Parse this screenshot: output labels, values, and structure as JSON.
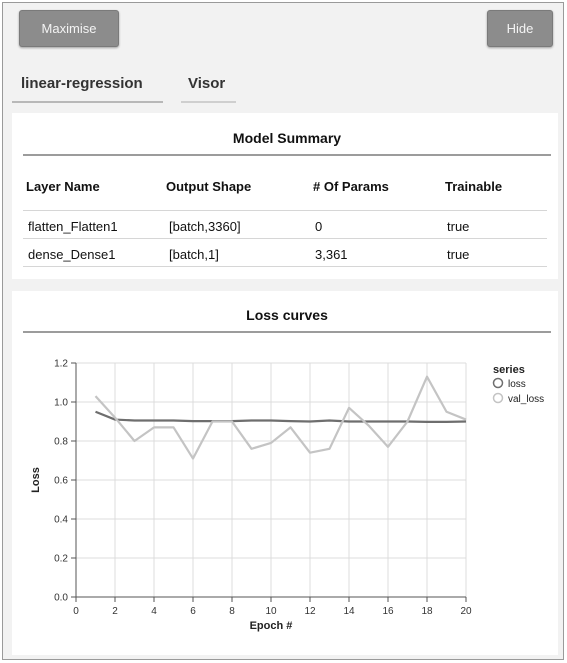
{
  "toolbar": {
    "maximise_label": "Maximise",
    "hide_label": "Hide"
  },
  "tabs": [
    {
      "label": "linear-regression"
    },
    {
      "label": "Visor"
    }
  ],
  "model_summary": {
    "title": "Model Summary",
    "columns": [
      "Layer Name",
      "Output Shape",
      "# Of Params",
      "Trainable"
    ],
    "rows": [
      [
        "flatten_Flatten1",
        "[batch,3360]",
        "0",
        "true"
      ],
      [
        "dense_Dense1",
        "[batch,1]",
        "3,361",
        "true"
      ]
    ]
  },
  "loss_panel": {
    "title": "Loss curves"
  },
  "chart_data": {
    "type": "line",
    "title": "Loss curves",
    "xlabel": "Epoch #",
    "ylabel": "Loss",
    "xlim": [
      0,
      20
    ],
    "ylim": [
      0,
      1.2
    ],
    "x_ticks": [
      0,
      2,
      4,
      6,
      8,
      10,
      12,
      14,
      16,
      18,
      20
    ],
    "y_ticks": [
      "0.0",
      "0.2",
      "0.4",
      "0.6",
      "0.8",
      "1.0",
      "1.2"
    ],
    "grid": true,
    "legend_title": "series",
    "legend_position": "top-right",
    "x": [
      1,
      2,
      3,
      4,
      5,
      6,
      7,
      8,
      9,
      10,
      11,
      12,
      13,
      14,
      15,
      16,
      17,
      18,
      19,
      20
    ],
    "series": [
      {
        "name": "loss",
        "color": "#6e6e6e",
        "values": [
          0.95,
          0.91,
          0.905,
          0.905,
          0.905,
          0.902,
          0.902,
          0.902,
          0.905,
          0.905,
          0.902,
          0.9,
          0.905,
          0.9,
          0.9,
          0.9,
          0.9,
          0.898,
          0.898,
          0.9
        ]
      },
      {
        "name": "val_loss",
        "color": "#c4c4c4",
        "values": [
          1.03,
          0.92,
          0.8,
          0.87,
          0.87,
          0.71,
          0.9,
          0.9,
          0.76,
          0.79,
          0.87,
          0.74,
          0.76,
          0.97,
          0.88,
          0.77,
          0.9,
          1.13,
          0.95,
          0.91
        ]
      }
    ]
  }
}
